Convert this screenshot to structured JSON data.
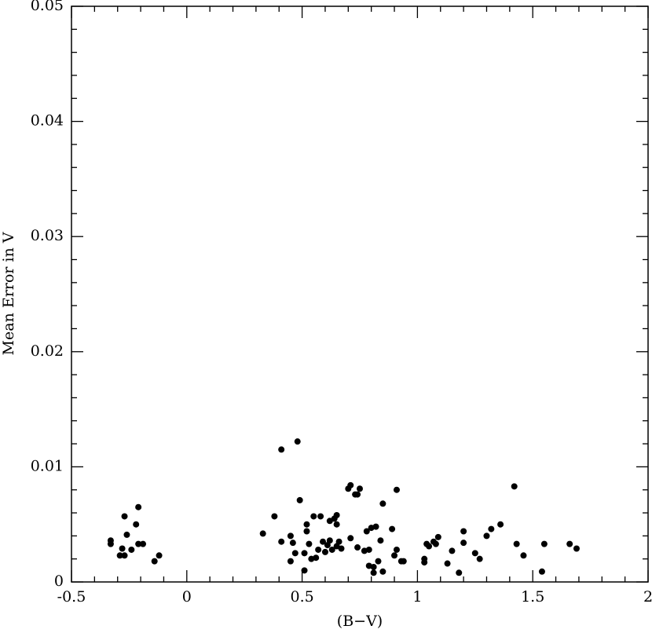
{
  "chart_data": {
    "type": "scatter",
    "xlabel": "(B−V)",
    "ylabel": "Mean Error in V",
    "color": "#000000",
    "xlim": [
      -0.5,
      2
    ],
    "ylim": [
      0,
      0.05
    ],
    "xticks": [
      -0.5,
      0,
      0.5,
      1,
      1.5,
      2
    ],
    "yticks": [
      0,
      0.01,
      0.02,
      0.03,
      0.04,
      0.05
    ],
    "xticks_minor": [
      -0.4,
      -0.3,
      -0.2,
      -0.1,
      0.1,
      0.2,
      0.3,
      0.4,
      0.6,
      0.7,
      0.8,
      0.9,
      1.1,
      1.2,
      1.3,
      1.4,
      1.6,
      1.7,
      1.8,
      1.9
    ],
    "yticks_minor": [
      0.002,
      0.004,
      0.006,
      0.008,
      0.012,
      0.014,
      0.016,
      0.018,
      0.022,
      0.024,
      0.026,
      0.028,
      0.032,
      0.034,
      0.036,
      0.038,
      0.042,
      0.044,
      0.046,
      0.048
    ],
    "x": [
      -0.33,
      -0.33,
      -0.29,
      -0.27,
      -0.28,
      -0.26,
      -0.27,
      -0.24,
      -0.22,
      -0.21,
      -0.21,
      -0.19,
      -0.14,
      -0.12,
      0.33,
      0.38,
      0.41,
      0.41,
      0.48,
      0.45,
      0.46,
      0.45,
      0.47,
      0.49,
      0.51,
      0.52,
      0.52,
      0.53,
      0.51,
      0.54,
      0.55,
      0.56,
      0.57,
      0.58,
      0.59,
      0.6,
      0.61,
      0.62,
      0.62,
      0.63,
      0.64,
      0.65,
      0.65,
      0.65,
      0.66,
      0.67,
      0.7,
      0.71,
      0.71,
      0.73,
      0.74,
      0.74,
      0.75,
      0.77,
      0.78,
      0.79,
      0.79,
      0.8,
      0.81,
      0.81,
      0.82,
      0.83,
      0.84,
      0.85,
      0.85,
      0.89,
      0.91,
      0.9,
      0.91,
      0.93,
      0.94,
      1.03,
      1.03,
      1.04,
      1.05,
      1.07,
      1.08,
      1.09,
      1.13,
      1.15,
      1.18,
      1.2,
      1.2,
      1.25,
      1.27,
      1.3,
      1.32,
      1.36,
      1.42,
      1.43,
      1.46,
      1.54,
      1.55,
      1.66,
      1.69
    ],
    "values": [
      0.0033,
      0.0036,
      0.0023,
      0.0023,
      0.0029,
      0.0041,
      0.0057,
      0.0028,
      0.005,
      0.0065,
      0.0033,
      0.0033,
      0.0018,
      0.0023,
      0.0042,
      0.0057,
      0.0035,
      0.0115,
      0.0122,
      0.004,
      0.0034,
      0.0018,
      0.0025,
      0.0071,
      0.001,
      0.005,
      0.0044,
      0.0033,
      0.0025,
      0.002,
      0.0057,
      0.0021,
      0.0028,
      0.0057,
      0.0035,
      0.0026,
      0.0032,
      0.0036,
      0.0053,
      0.0028,
      0.0055,
      0.0058,
      0.005,
      0.0031,
      0.0035,
      0.0029,
      0.0081,
      0.0038,
      0.0084,
      0.0076,
      0.0076,
      0.003,
      0.0081,
      0.0027,
      0.0044,
      0.0014,
      0.0028,
      0.0047,
      0.0013,
      0.0008,
      0.0048,
      0.0018,
      0.0036,
      0.0068,
      0.0009,
      0.0046,
      0.008,
      0.0023,
      0.0028,
      0.0018,
      0.0018,
      0.002,
      0.0017,
      0.0033,
      0.0031,
      0.0035,
      0.0033,
      0.0039,
      0.0016,
      0.0027,
      0.0008,
      0.0034,
      0.0044,
      0.0025,
      0.002,
      0.004,
      0.0046,
      0.005,
      0.0083,
      0.0033,
      0.0023,
      0.0009,
      0.0033,
      0.0033,
      0.0029
    ]
  }
}
